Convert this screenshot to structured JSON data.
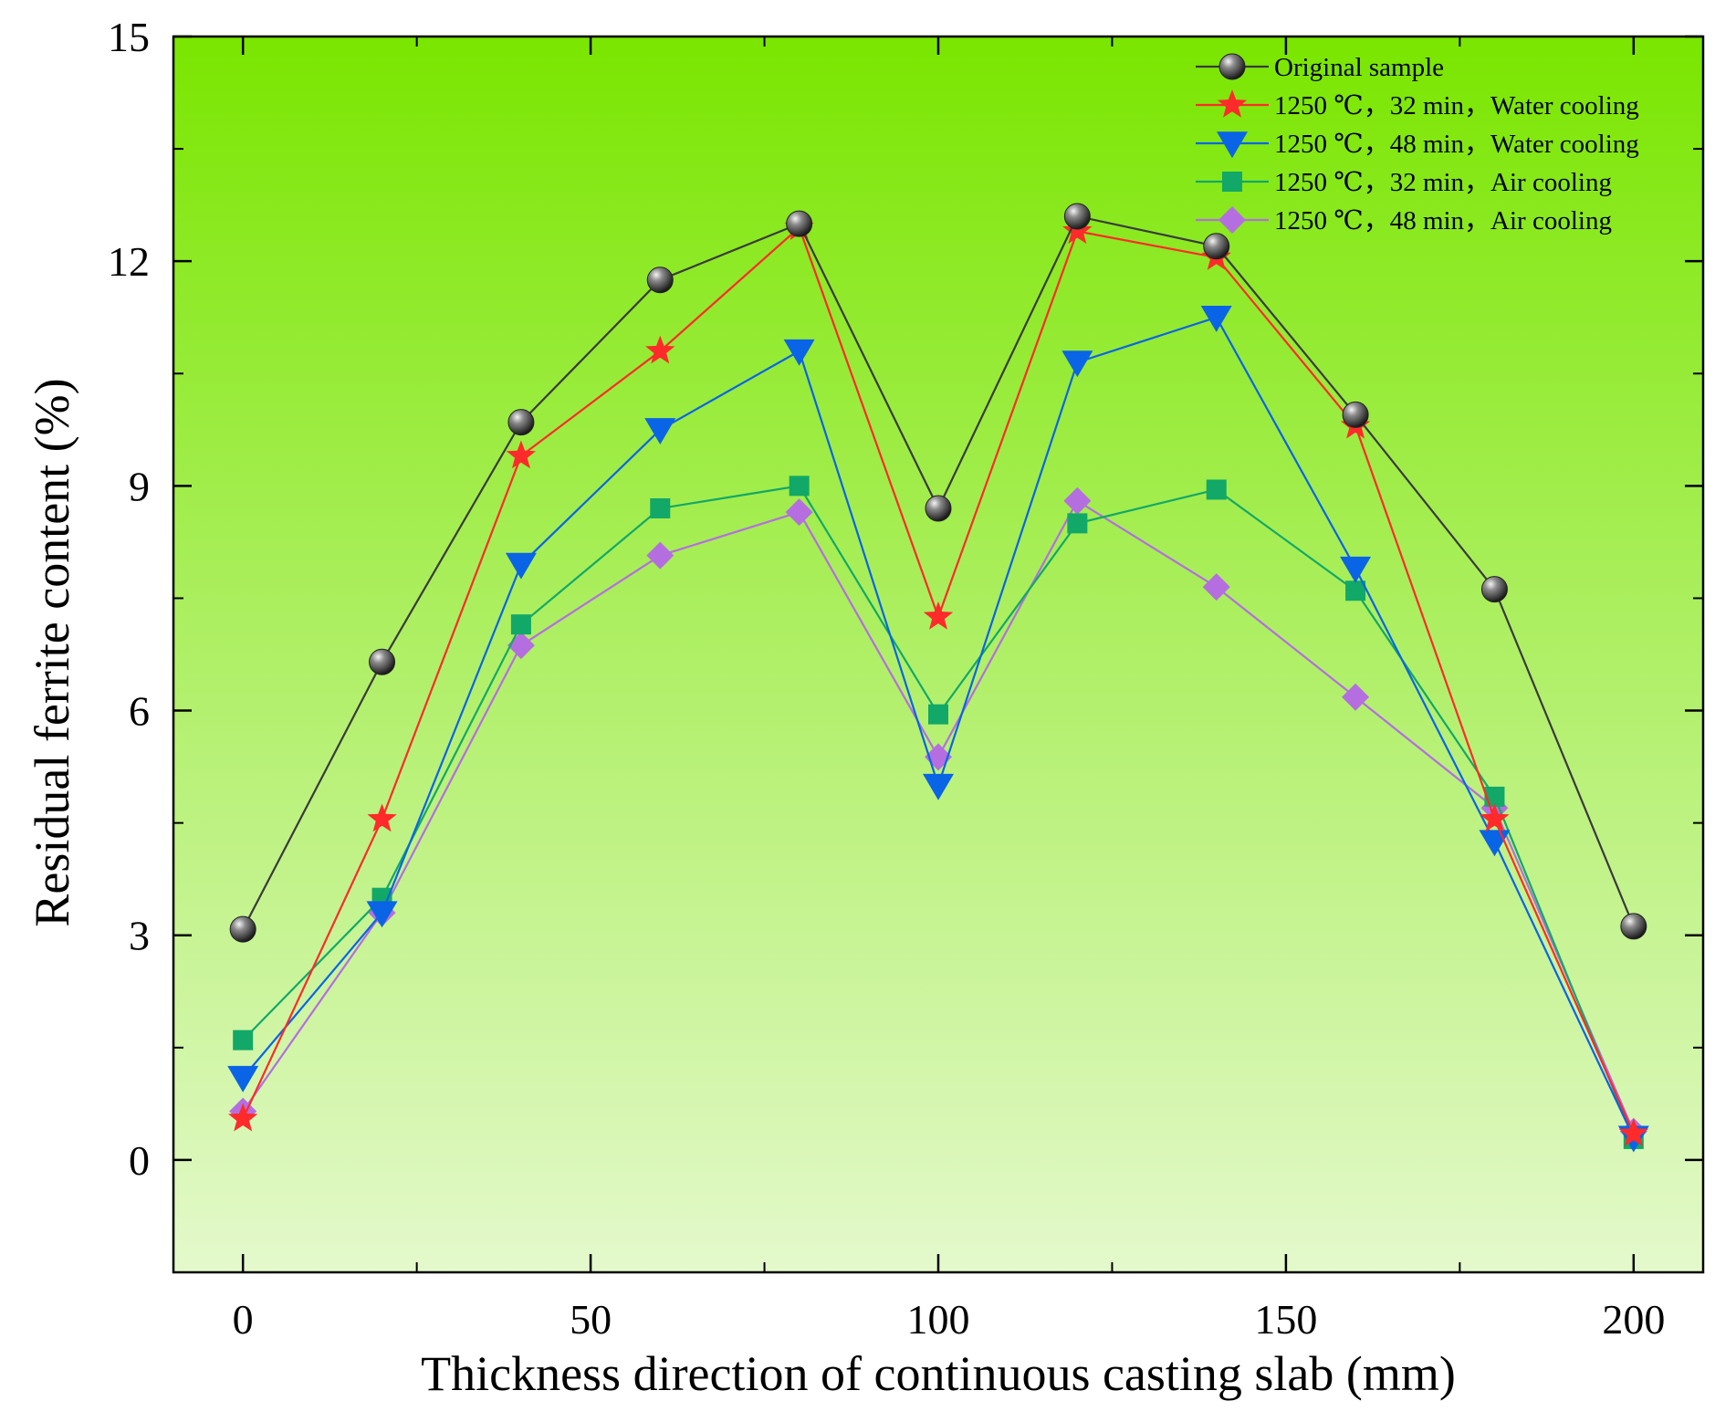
{
  "chart_data": {
    "type": "line",
    "xlabel": "Thickness direction of continuous casting slab (mm)",
    "ylabel": "Residual ferrite content (%)",
    "xlim": [
      -10,
      210
    ],
    "ylim": [
      -1.5,
      15
    ],
    "x_ticks": [
      0,
      50,
      100,
      150,
      200
    ],
    "y_ticks": [
      0,
      3,
      6,
      9,
      12,
      15
    ],
    "x_tick_labels": [
      "0",
      "50",
      "100",
      "150",
      "200"
    ],
    "y_tick_labels": [
      "0",
      "3",
      "6",
      "9",
      "12",
      "15"
    ],
    "x": [
      0,
      20,
      40,
      60,
      80,
      100,
      120,
      140,
      160,
      180,
      200
    ],
    "legend_position": "top-right",
    "grid": false,
    "background_gradient": [
      "#7ae600",
      "#e4f9cc"
    ],
    "series": [
      {
        "name": "Original sample",
        "marker": "sphere",
        "color": "#3a3a3a",
        "values": [
          3.08,
          6.65,
          9.85,
          11.75,
          12.5,
          8.7,
          12.6,
          12.2,
          9.95,
          7.62,
          3.12
        ]
      },
      {
        "name": "1250 ℃，32 min，Water cooling",
        "marker": "star",
        "color": "#ff2a2a",
        "values": [
          0.55,
          4.55,
          9.4,
          10.8,
          12.45,
          7.25,
          12.4,
          12.05,
          9.8,
          4.55,
          0.35
        ]
      },
      {
        "name": "1250 ℃，48 min，Water cooling",
        "marker": "triangle-down",
        "color": "#0a64e6",
        "values": [
          1.1,
          3.3,
          7.95,
          9.75,
          10.8,
          5.0,
          10.65,
          11.25,
          7.9,
          4.25,
          0.3
        ]
      },
      {
        "name": "1250 ℃，32 min，Air cooling",
        "marker": "square",
        "color": "#12a868",
        "values": [
          1.6,
          3.5,
          7.15,
          8.7,
          9.0,
          5.95,
          8.5,
          8.95,
          7.6,
          4.85,
          0.28
        ]
      },
      {
        "name": "1250 ℃，48 min，Air cooling",
        "marker": "diamond",
        "color": "#b56ee0",
        "values": [
          0.65,
          3.3,
          6.87,
          8.07,
          8.65,
          5.38,
          8.8,
          7.65,
          6.18,
          4.7,
          0.38
        ]
      }
    ]
  }
}
